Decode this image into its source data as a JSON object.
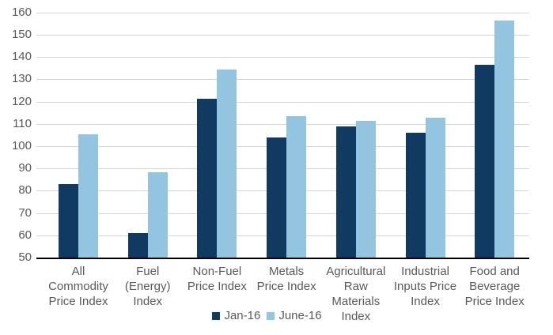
{
  "chart_data": {
    "type": "bar",
    "title": "",
    "xlabel": "",
    "ylabel": "",
    "categories": [
      "All Commodity Price Index",
      "Fuel (Energy) Index",
      "Non-Fuel Price Index",
      "Metals Price Index",
      "Agricultural Raw Materials Index",
      "Industrial Inputs Price Index",
      "Food and Beverage Price Index"
    ],
    "category_label_lines": [
      [
        "All",
        "Commodity",
        "Price Index"
      ],
      [
        "Fuel",
        "(Energy)",
        "Index"
      ],
      [
        "Non-Fuel",
        "Price Index"
      ],
      [
        "Metals",
        "Price Index"
      ],
      [
        "Agricultural",
        "Raw",
        "Materials",
        "Index"
      ],
      [
        "Industrial",
        "Inputs Price",
        "Index"
      ],
      [
        "Food and",
        "Beverage",
        "Price Index"
      ]
    ],
    "series": [
      {
        "name": "Jan-16",
        "color": "#113A63",
        "values": [
          83,
          61,
          121.3,
          103.8,
          108.7,
          106,
          136.5
        ]
      },
      {
        "name": "June-16",
        "color": "#93C5E1",
        "values": [
          105.2,
          88.4,
          134.4,
          113.4,
          111.5,
          112.6,
          156.3
        ]
      }
    ],
    "ylim": [
      50,
      160
    ],
    "yticks": [
      50,
      60,
      70,
      80,
      90,
      100,
      110,
      120,
      130,
      140,
      150,
      160
    ],
    "grid": true,
    "legend_position": "bottom",
    "colors": {
      "axis_text": "#595959",
      "gridline": "#D4D4D4",
      "axis_line": "#000000",
      "background": "#FFFFFF"
    }
  }
}
